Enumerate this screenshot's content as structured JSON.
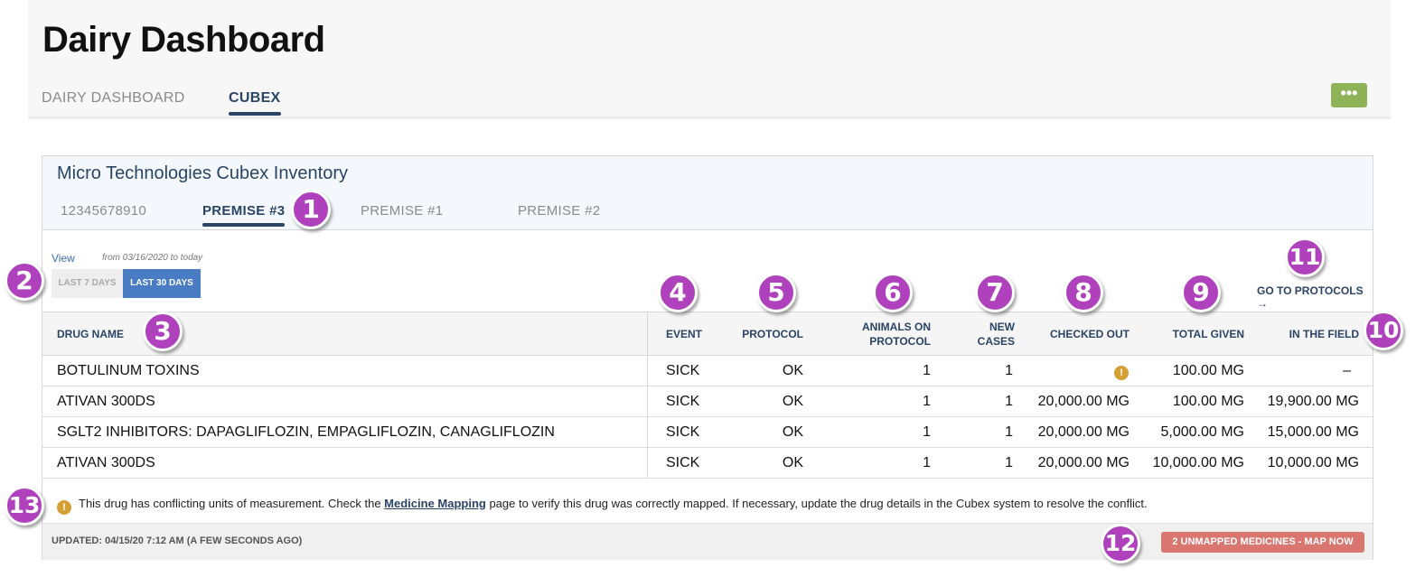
{
  "header": {
    "title": "Dairy Dashboard",
    "tabs": [
      {
        "label": "DAIRY DASHBOARD",
        "active": false
      },
      {
        "label": "CUBEX",
        "active": true
      }
    ],
    "more_label": "•••"
  },
  "panel": {
    "title": "Micro Technologies Cubex Inventory",
    "premise_tabs": [
      {
        "label": "12345678910",
        "active": false
      },
      {
        "label": "PREMISE #3",
        "active": true
      },
      {
        "label": "PREMISE #1",
        "active": false
      },
      {
        "label": "PREMISE #2",
        "active": false
      }
    ],
    "view_label": "View",
    "range_text": "from 03/16/2020 to today",
    "range_buttons": [
      {
        "label": "LAST 7 DAYS",
        "active": false
      },
      {
        "label": "LAST 30 DAYS",
        "active": true
      }
    ],
    "protocols_link": "GO TO PROTOCOLS →"
  },
  "table": {
    "columns": {
      "drug_name": "DRUG NAME",
      "event": "EVENT",
      "protocol": "PROTOCOL",
      "animals_line1": "ANIMALS ON",
      "animals_line2": "PROTOCOL",
      "new_line1": "NEW",
      "new_line2": "CASES",
      "checked_out": "CHECKED OUT",
      "total_given": "TOTAL GIVEN",
      "in_field": "IN THE FIELD"
    },
    "rows": [
      {
        "drug": "BOTULINUM TOXINS",
        "event": "SICK",
        "protocol": "OK",
        "animals": "1",
        "new_cases": "1",
        "checked_out": "",
        "total_given": "100.00 MG",
        "in_field": "–"
      },
      {
        "drug": "ATIVAN 300DS",
        "event": "SICK",
        "protocol": "OK",
        "animals": "1",
        "new_cases": "1",
        "checked_out": "20,000.00 MG",
        "total_given": "100.00 MG",
        "in_field": "19,900.00 MG"
      },
      {
        "drug": "SGLT2 INHIBITORS: DAPAGLIFLOZIN, EMPAGLIFLOZIN, CANAGLIFLOZIN",
        "event": "SICK",
        "protocol": "OK",
        "animals": "1",
        "new_cases": "1",
        "checked_out": "20,000.00 MG",
        "total_given": "5,000.00 MG",
        "in_field": "15,000.00 MG"
      },
      {
        "drug": "ATIVAN 300DS",
        "event": "SICK",
        "protocol": "OK",
        "animals": "1",
        "new_cases": "1",
        "checked_out": "20,000.00 MG",
        "total_given": "10,000.00 MG",
        "in_field": "10,000.00 MG"
      }
    ],
    "warn_glyph": "!"
  },
  "note": {
    "before": "This drug has conflicting units of measurement. Check the ",
    "link": "Medicine Mapping",
    "after": " page to verify this drug was correctly mapped. If necessary, update the drug details in the Cubex system to resolve the conflict."
  },
  "footer": {
    "updated": "UPDATED: 04/15/20 7:12 AM (A FEW SECONDS AGO)",
    "unmapped_button": "2 UNMAPPED MEDICINES - MAP NOW"
  },
  "callouts": [
    "1",
    "2",
    "3",
    "4",
    "5",
    "6",
    "7",
    "8",
    "9",
    "10",
    "11",
    "12",
    "13"
  ],
  "colors": {
    "navy": "#2a4466",
    "accent_blue": "#4a7cc4",
    "more_green": "#8db356",
    "warning": "#d4a033",
    "unmapped_red": "#d9766f",
    "callout_purple": "#b041bd"
  }
}
